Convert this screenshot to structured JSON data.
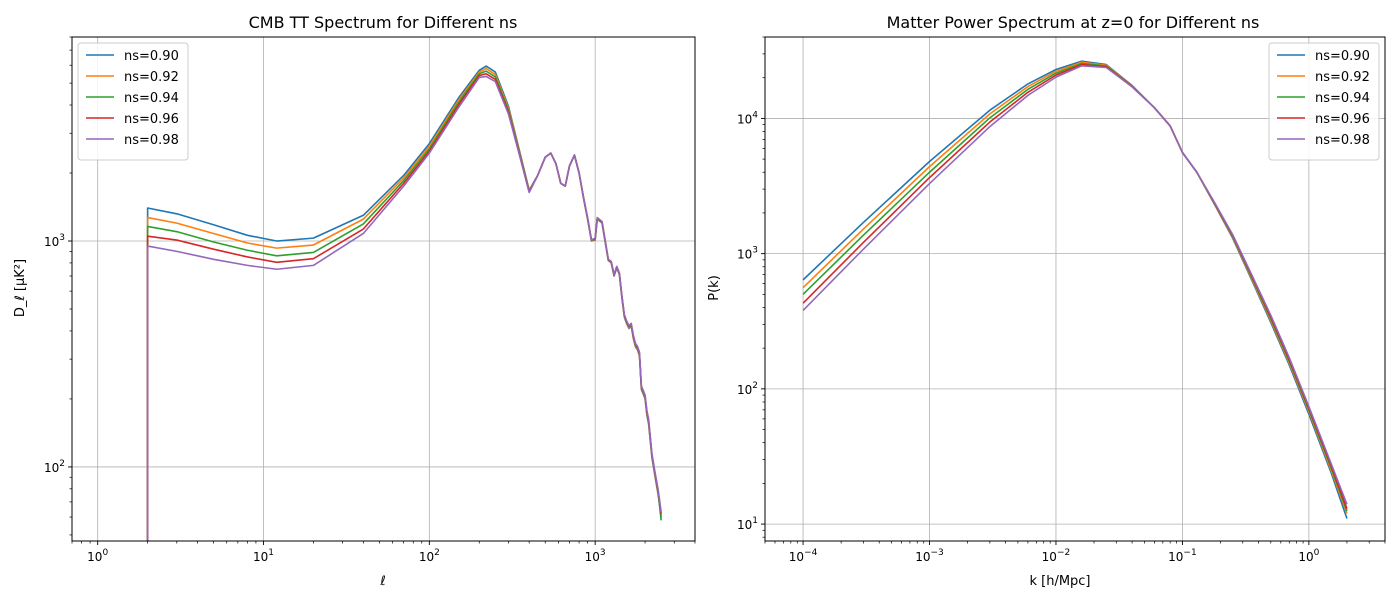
{
  "chart_data": [
    {
      "type": "line",
      "title": "CMB TT Spectrum for Different ns",
      "xlabel": "ℓ",
      "ylabel": "D_ℓ [μK²]",
      "xscale": "log",
      "yscale": "log",
      "xlim": [
        0.7,
        4000
      ],
      "ylim": [
        47,
        8000
      ],
      "grid": true,
      "legend": "top-left",
      "xticks": [
        {
          "v": 1,
          "base": "10",
          "exp": "0"
        },
        {
          "v": 10,
          "base": "10",
          "exp": "1"
        },
        {
          "v": 100,
          "base": "10",
          "exp": "2"
        },
        {
          "v": 1000,
          "base": "10",
          "exp": "3"
        }
      ],
      "yticks": [
        {
          "v": 100,
          "base": "10",
          "exp": "2"
        },
        {
          "v": 1000,
          "base": "10",
          "exp": "3"
        }
      ],
      "series": [
        {
          "name": "ns=0.90",
          "color": "#1f77b4",
          "low_start": 1400,
          "low_min": 1000,
          "peak": 5950,
          "x": [
            2,
            3,
            5,
            8,
            12,
            20,
            40,
            70,
            100,
            150,
            200,
            220,
            250,
            300,
            350,
            400,
            450,
            500,
            540,
            580,
            620,
            660,
            700,
            750,
            800,
            850,
            900,
            950,
            1000,
            1030,
            1100,
            1200,
            1250,
            1300,
            1350,
            1400,
            1450,
            1500,
            1550,
            1600,
            1650,
            1700,
            1750,
            1800,
            1850,
            1900,
            1950,
            2000,
            2050,
            2100,
            2200,
            2300,
            2400,
            2500
          ],
          "y": [
            1400,
            1320,
            1180,
            1060,
            1000,
            1030,
            1300,
            1950,
            2700,
            4300,
            5700,
            5950,
            5600,
            3950,
            2500,
            1680,
            1950,
            2350,
            2450,
            2200,
            1800,
            1750,
            2150,
            2400,
            2000,
            1550,
            1250,
            1000,
            1010,
            1250,
            1200,
            820,
            800,
            700,
            760,
            710,
            560,
            460,
            430,
            410,
            420,
            370,
            340,
            330,
            310,
            220,
            210,
            200,
            170,
            155,
            110,
            90,
            75,
            60
          ]
        },
        {
          "name": "ns=0.92",
          "color": "#ff7f0e",
          "low_start": 1270,
          "low_min": 930,
          "peak": 5800,
          "x": [
            2,
            3,
            5,
            8,
            12,
            20,
            40,
            70,
            100,
            150,
            200,
            220,
            250,
            300,
            350,
            400,
            450,
            500,
            540,
            580,
            620,
            660,
            700,
            750,
            800,
            850,
            900,
            950,
            1000,
            1030,
            1100,
            1200,
            1250,
            1300,
            1350,
            1400,
            1450,
            1500,
            1550,
            1600,
            1650,
            1700,
            1750,
            1800,
            1850,
            1900,
            1950,
            2000,
            2050,
            2100,
            2200,
            2300,
            2400,
            2500
          ],
          "y": [
            1270,
            1200,
            1080,
            980,
            930,
            960,
            1250,
            1900,
            2630,
            4200,
            5600,
            5800,
            5460,
            3880,
            2470,
            1670,
            1950,
            2350,
            2450,
            2200,
            1800,
            1750,
            2150,
            2400,
            2000,
            1555,
            1255,
            1003,
            1015,
            1255,
            1205,
            823,
            803,
            703,
            763,
            713,
            563,
            463,
            433,
            413,
            423,
            373,
            343,
            333,
            313,
            222,
            212,
            202,
            172,
            157,
            111,
            91,
            76,
            61
          ]
        },
        {
          "name": "ns=0.94",
          "color": "#2ca02c",
          "low_start": 1160,
          "low_min": 860,
          "peak": 5650,
          "x": [
            2,
            3,
            5,
            8,
            12,
            20,
            40,
            70,
            100,
            150,
            200,
            220,
            250,
            300,
            350,
            400,
            450,
            500,
            540,
            580,
            620,
            660,
            700,
            750,
            800,
            850,
            900,
            950,
            1000,
            1030,
            1100,
            1200,
            1250,
            1300,
            1350,
            1400,
            1450,
            1500,
            1550,
            1600,
            1650,
            1700,
            1750,
            1800,
            1850,
            1900,
            1950,
            2000,
            2050,
            2100,
            2200,
            2300,
            2400,
            2500
          ],
          "y": [
            1160,
            1100,
            990,
            910,
            860,
            890,
            1190,
            1850,
            2560,
            4100,
            5500,
            5650,
            5330,
            3800,
            2440,
            1660,
            1950,
            2350,
            2450,
            2200,
            1800,
            1750,
            2150,
            2400,
            2000,
            1560,
            1260,
            1006,
            1020,
            1260,
            1210,
            826,
            806,
            706,
            766,
            716,
            566,
            466,
            436,
            416,
            426,
            376,
            346,
            336,
            316,
            224,
            214,
            204,
            174,
            159,
            112,
            92,
            77,
            58
          ]
        },
        {
          "name": "ns=0.96",
          "color": "#d62728",
          "low_start": 1050,
          "low_min": 805,
          "peak": 5500,
          "x": [
            2,
            3,
            5,
            8,
            12,
            20,
            40,
            70,
            100,
            150,
            200,
            220,
            250,
            300,
            350,
            400,
            450,
            500,
            540,
            580,
            620,
            660,
            700,
            750,
            800,
            850,
            900,
            950,
            1000,
            1030,
            1100,
            1200,
            1250,
            1300,
            1350,
            1400,
            1450,
            1500,
            1550,
            1600,
            1650,
            1700,
            1750,
            1800,
            1850,
            1900,
            1950,
            2000,
            2050,
            2100,
            2200,
            2300,
            2400,
            2500
          ],
          "y": [
            1050,
            1010,
            920,
            850,
            805,
            835,
            1130,
            1800,
            2500,
            4000,
            5400,
            5500,
            5200,
            3720,
            2410,
            1650,
            1950,
            2350,
            2450,
            2200,
            1800,
            1750,
            2150,
            2400,
            2000,
            1565,
            1265,
            1009,
            1025,
            1265,
            1215,
            829,
            809,
            709,
            769,
            719,
            569,
            469,
            439,
            419,
            429,
            379,
            349,
            339,
            319,
            226,
            216,
            206,
            176,
            161,
            113,
            93,
            78,
            62
          ]
        },
        {
          "name": "ns=0.98",
          "color": "#9467bd",
          "low_start": 950,
          "low_min": 750,
          "peak": 5350,
          "x": [
            2,
            3,
            5,
            8,
            12,
            20,
            40,
            70,
            100,
            150,
            200,
            220,
            250,
            300,
            350,
            400,
            450,
            500,
            540,
            580,
            620,
            660,
            700,
            750,
            800,
            850,
            900,
            950,
            1000,
            1030,
            1100,
            1200,
            1250,
            1300,
            1350,
            1400,
            1450,
            1500,
            1550,
            1600,
            1650,
            1700,
            1750,
            1800,
            1850,
            1900,
            1950,
            2000,
            2050,
            2100,
            2200,
            2300,
            2400,
            2500
          ],
          "y": [
            950,
            900,
            830,
            780,
            750,
            780,
            1080,
            1750,
            2450,
            3900,
            5300,
            5350,
            5080,
            3650,
            2390,
            1640,
            1950,
            2350,
            2450,
            2200,
            1800,
            1750,
            2150,
            2400,
            2000,
            1570,
            1270,
            1012,
            1030,
            1270,
            1220,
            832,
            812,
            712,
            772,
            722,
            572,
            472,
            442,
            422,
            432,
            382,
            352,
            342,
            322,
            228,
            218,
            208,
            178,
            163,
            114,
            94,
            79,
            63
          ]
        }
      ]
    },
    {
      "type": "line",
      "title": "Matter Power Spectrum at z=0 for Different ns",
      "xlabel": "k [h/Mpc]",
      "ylabel": "P(k)",
      "xscale": "log",
      "yscale": "log",
      "xlim": [
        5e-05,
        4
      ],
      "ylim": [
        7.5,
        40000
      ],
      "grid": true,
      "legend": "top-right",
      "xticks": [
        {
          "v": 0.0001,
          "base": "10",
          "exp": "−4"
        },
        {
          "v": 0.001,
          "base": "10",
          "exp": "−3"
        },
        {
          "v": 0.01,
          "base": "10",
          "exp": "−2"
        },
        {
          "v": 0.1,
          "base": "10",
          "exp": "−1"
        },
        {
          "v": 1,
          "base": "10",
          "exp": "0"
        }
      ],
      "yticks": [
        {
          "v": 10,
          "base": "10",
          "exp": "1"
        },
        {
          "v": 100,
          "base": "10",
          "exp": "2"
        },
        {
          "v": 1000,
          "base": "10",
          "exp": "3"
        },
        {
          "v": 10000,
          "base": "10",
          "exp": "4"
        }
      ],
      "series": [
        {
          "name": "ns=0.90",
          "color": "#1f77b4",
          "x": [
            0.0001,
            0.0003,
            0.001,
            0.003,
            0.006,
            0.01,
            0.016,
            0.025,
            0.04,
            0.06,
            0.08,
            0.1,
            0.13,
            0.18,
            0.25,
            0.35,
            0.5,
            0.7,
            1.0,
            1.5,
            2.0
          ],
          "y": [
            640,
            1700,
            4800,
            11500,
            18000,
            23000,
            26500,
            25000,
            17500,
            12000,
            8800,
            5600,
            4000,
            2300,
            1300,
            650,
            310,
            150,
            65,
            24,
            11
          ]
        },
        {
          "name": "ns=0.92",
          "color": "#ff7f0e",
          "x": [
            0.0001,
            0.0003,
            0.001,
            0.003,
            0.006,
            0.01,
            0.016,
            0.025,
            0.04,
            0.06,
            0.08,
            0.1,
            0.13,
            0.18,
            0.25,
            0.35,
            0.5,
            0.7,
            1.0,
            1.5,
            2.0
          ],
          "y": [
            560,
            1520,
            4400,
            10800,
            17200,
            22300,
            26000,
            24700,
            17400,
            12000,
            8800,
            5600,
            4000,
            2320,
            1320,
            665,
            320,
            155,
            68,
            25,
            12
          ]
        },
        {
          "name": "ns=0.94",
          "color": "#2ca02c",
          "x": [
            0.0001,
            0.0003,
            0.001,
            0.003,
            0.006,
            0.01,
            0.016,
            0.025,
            0.04,
            0.06,
            0.08,
            0.1,
            0.13,
            0.18,
            0.25,
            0.35,
            0.5,
            0.7,
            1.0,
            1.5,
            2.0
          ],
          "y": [
            500,
            1370,
            4000,
            10100,
            16400,
            21600,
            25500,
            24400,
            17300,
            12000,
            8800,
            5600,
            4000,
            2340,
            1340,
            680,
            330,
            160,
            70,
            26,
            12.5
          ]
        },
        {
          "name": "ns=0.96",
          "color": "#d62728",
          "x": [
            0.0001,
            0.0003,
            0.001,
            0.003,
            0.006,
            0.01,
            0.016,
            0.025,
            0.04,
            0.06,
            0.08,
            0.1,
            0.13,
            0.18,
            0.25,
            0.35,
            0.5,
            0.7,
            1.0,
            1.5,
            2.0
          ],
          "y": [
            430,
            1210,
            3650,
            9400,
            15600,
            20900,
            25000,
            24100,
            17200,
            12000,
            8800,
            5600,
            4000,
            2360,
            1360,
            695,
            340,
            165,
            72,
            27,
            13
          ]
        },
        {
          "name": "ns=0.98",
          "color": "#9467bd",
          "x": [
            0.0001,
            0.0003,
            0.001,
            0.003,
            0.006,
            0.01,
            0.016,
            0.025,
            0.04,
            0.06,
            0.08,
            0.1,
            0.13,
            0.18,
            0.25,
            0.35,
            0.5,
            0.7,
            1.0,
            1.5,
            2.0
          ],
          "y": [
            380,
            1080,
            3300,
            8700,
            14800,
            20200,
            24500,
            23800,
            17100,
            12000,
            8800,
            5600,
            4000,
            2380,
            1380,
            710,
            350,
            170,
            74,
            28,
            14
          ]
        }
      ]
    }
  ]
}
